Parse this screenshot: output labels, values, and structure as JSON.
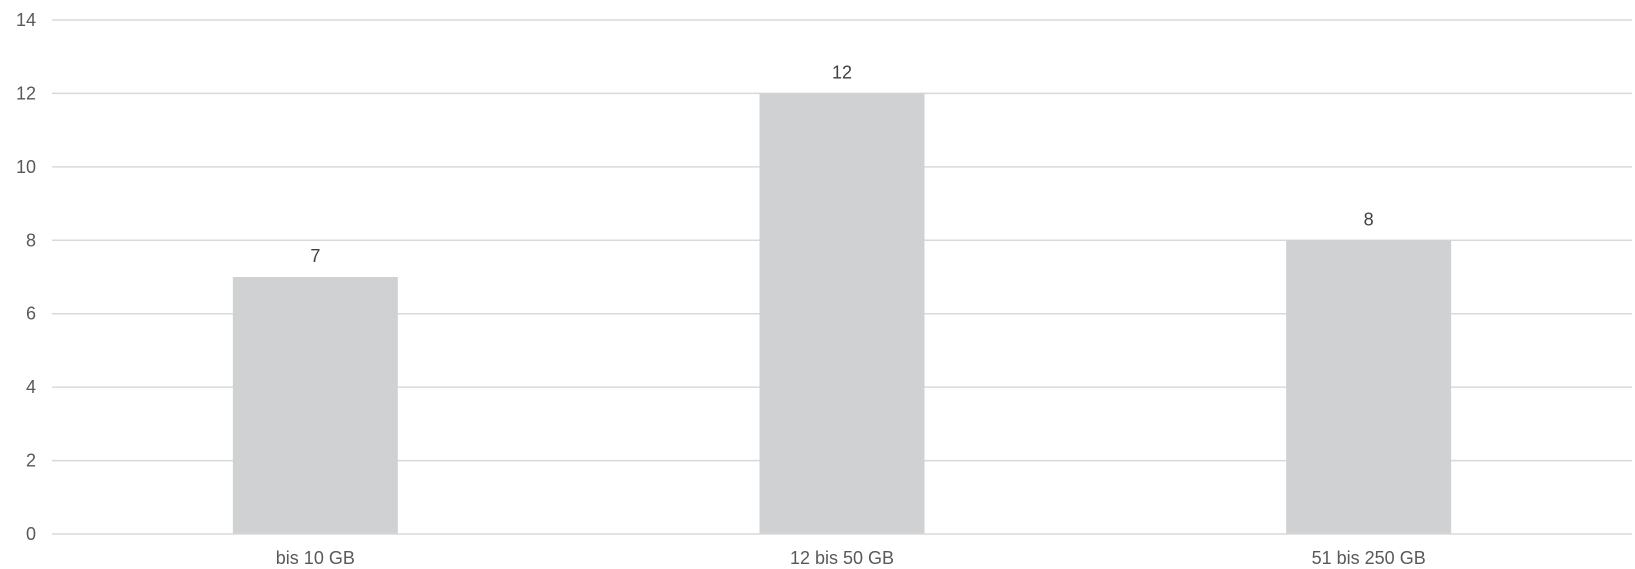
{
  "chart_data": {
    "type": "bar",
    "categories": [
      "bis 10 GB",
      "12 bis 50 GB",
      "51 bis 250 GB"
    ],
    "values": [
      7,
      12,
      8
    ],
    "data_labels": [
      "7",
      "12",
      "8"
    ],
    "title": "",
    "xlabel": "",
    "ylabel": "",
    "ylim": [
      0,
      14
    ],
    "yticks": [
      0,
      2,
      4,
      6,
      8,
      10,
      12,
      14
    ],
    "ytick_labels": [
      "0",
      "2",
      "4",
      "6",
      "8",
      "10",
      "12",
      "14"
    ],
    "grid": true,
    "legend": "none",
    "colors": {
      "bar": "#d0d1d2",
      "grid": "#d9d9d9",
      "axis": "#d9d9d9"
    }
  }
}
